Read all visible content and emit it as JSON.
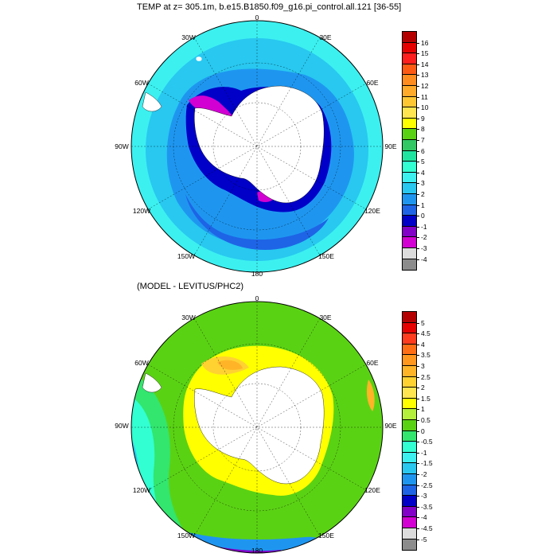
{
  "panels": [
    {
      "title": "TEMP at z= 305.1m, b.e15.B1850.f09_g16.pi_control.all.121 [36-55]",
      "grid_labels": {
        "top": "0",
        "top_left": "30W",
        "top_right": "30E",
        "upper_left": "60W",
        "upper_right": "60E",
        "left": "90W",
        "right": "90E",
        "lower_left": "120W",
        "lower_right": "120E",
        "bottom_left": "150W",
        "bottom_right": "150E",
        "bottom": "180"
      },
      "colorbar": {
        "labels": [
          "16",
          "15",
          "14",
          "13",
          "12",
          "11",
          "10",
          "9",
          "8",
          "7",
          "6",
          "5",
          "4",
          "3",
          "2",
          "1",
          "0",
          "-1",
          "-2",
          "-3",
          "-4"
        ],
        "colors": [
          "#b40000",
          "#e60000",
          "#ff1e1e",
          "#ff5a14",
          "#ff8c1e",
          "#ffaa28",
          "#ffc832",
          "#ffe650",
          "#ffff00",
          "#5ad214",
          "#32c864",
          "#1ee6a0",
          "#32ffd2",
          "#3cf0f0",
          "#28c8f0",
          "#1e96f0",
          "#1e64e6",
          "#0000c8",
          "#8200c8",
          "#d200d2",
          "#dcdcdc",
          "#8c8c8c"
        ]
      }
    },
    {
      "title": "(MODEL - LEVITUS/PHC2)",
      "grid_labels": {
        "top": "0",
        "top_left": "30W",
        "top_right": "30E",
        "upper_left": "60W",
        "upper_right": "60E",
        "left": "90W",
        "right": "90E",
        "lower_left": "120W",
        "lower_right": "120E",
        "bottom_left": "150W",
        "bottom_right": "150E",
        "bottom": "180"
      },
      "colorbar": {
        "labels": [
          "5",
          "4.5",
          "4",
          "3.5",
          "3",
          "2.5",
          "2",
          "1.5",
          "1",
          "0.5",
          "0",
          "-0.5",
          "-1",
          "-1.5",
          "-2",
          "-2.5",
          "-3",
          "-3.5",
          "-4",
          "-4.5",
          "-5"
        ],
        "colors": [
          "#b40000",
          "#e60000",
          "#ff3c1e",
          "#ff6e14",
          "#ff961e",
          "#ffb428",
          "#ffd232",
          "#ffe650",
          "#ffff00",
          "#b4f03c",
          "#5ad214",
          "#32e66e",
          "#32ffd2",
          "#3cf0f0",
          "#28c8f0",
          "#1e96f0",
          "#1e64e6",
          "#0000c8",
          "#8200c8",
          "#d200d2",
          "#dcdcdc",
          "#8c8c8c"
        ]
      }
    }
  ]
}
